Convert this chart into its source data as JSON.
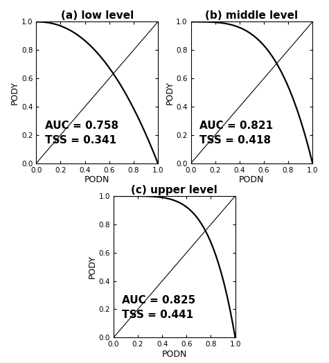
{
  "panels": [
    {
      "title": "(a) low level",
      "auc": 0.758,
      "tss": 0.341,
      "curve_beta": 2.2
    },
    {
      "title": "(b) middle level",
      "auc": 0.821,
      "tss": 0.418,
      "curve_beta": 3.5
    },
    {
      "title": "(c) upper level",
      "auc": 0.825,
      "tss": 0.441,
      "curve_beta": 5.0
    }
  ],
  "xlabel": "PODN",
  "ylabel": "PODY",
  "xlim": [
    0.0,
    1.0
  ],
  "ylim": [
    0.0,
    1.0
  ],
  "xticks": [
    0.0,
    0.2,
    0.4,
    0.6,
    0.8,
    1.0
  ],
  "yticks": [
    0.0,
    0.2,
    0.4,
    0.6,
    0.8,
    1.0
  ],
  "curve_color": "#000000",
  "diag_color": "#000000",
  "background_color": "#ffffff",
  "curve_linewidth": 1.6,
  "diag_linewidth": 0.8,
  "annotation_fontsize": 11,
  "title_fontsize": 11
}
